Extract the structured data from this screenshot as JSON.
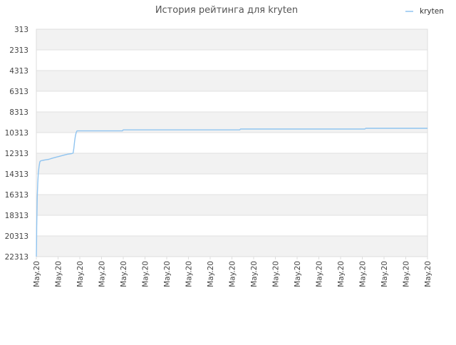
{
  "chart_data": {
    "type": "line",
    "title": "История рейтинга для kryten",
    "legend": {
      "position": "top-right",
      "entries": [
        "kryten"
      ]
    },
    "y_axis": {
      "inverted": true,
      "ylim": [
        313,
        22313
      ],
      "ticks": [
        "313",
        "2313",
        "4313",
        "6313",
        "8313",
        "10313",
        "12313",
        "14313",
        "16313",
        "18313",
        "20313",
        "22313"
      ]
    },
    "x_axis": {
      "ticks": [
        "May.20",
        "May.20",
        "May.20",
        "May.20",
        "May.20",
        "May.20",
        "May.20",
        "May.20",
        "May.20",
        "May.20",
        "May.20",
        "May.20",
        "May.20",
        "May.20",
        "May.20",
        "May.20",
        "May.20",
        "May.20",
        "May.20"
      ]
    },
    "grid": true,
    "series": [
      {
        "name": "kryten",
        "color": "#90c4f0",
        "points": [
          [
            0.0,
            22313
          ],
          [
            0.3,
            21100
          ],
          [
            0.5,
            19500
          ],
          [
            0.8,
            18000
          ],
          [
            1.2,
            16500
          ],
          [
            1.8,
            15200
          ],
          [
            2.5,
            14300
          ],
          [
            3.5,
            13600
          ],
          [
            4.5,
            13150
          ],
          [
            5.5,
            13050
          ],
          [
            8,
            13000
          ],
          [
            12,
            12950
          ],
          [
            16,
            12900
          ],
          [
            20,
            12800
          ],
          [
            25,
            12700
          ],
          [
            30,
            12600
          ],
          [
            35,
            12500
          ],
          [
            40,
            12400
          ],
          [
            45,
            12350
          ],
          [
            47,
            12300
          ],
          [
            48,
            11800
          ],
          [
            49,
            11100
          ],
          [
            50,
            10600
          ],
          [
            51,
            10300
          ],
          [
            52,
            10150
          ],
          [
            60,
            10150
          ],
          [
            80,
            10150
          ],
          [
            100,
            10150
          ],
          [
            110,
            10150
          ],
          [
            111,
            10050
          ],
          [
            150,
            10050
          ],
          [
            190,
            10050
          ],
          [
            230,
            10050
          ],
          [
            260,
            10050
          ],
          [
            261,
            9970
          ],
          [
            300,
            9970
          ],
          [
            350,
            9970
          ],
          [
            400,
            9970
          ],
          [
            420,
            9970
          ],
          [
            421,
            9900
          ],
          [
            460,
            9900
          ],
          [
            500,
            9900
          ]
        ]
      }
    ],
    "x_range": [
      0,
      500
    ]
  },
  "colors": {
    "band": "#f2f2f2",
    "grid": "#e0e0e0",
    "frame": "#dddddd",
    "axis_text": "#444444",
    "title_text": "#555555"
  }
}
